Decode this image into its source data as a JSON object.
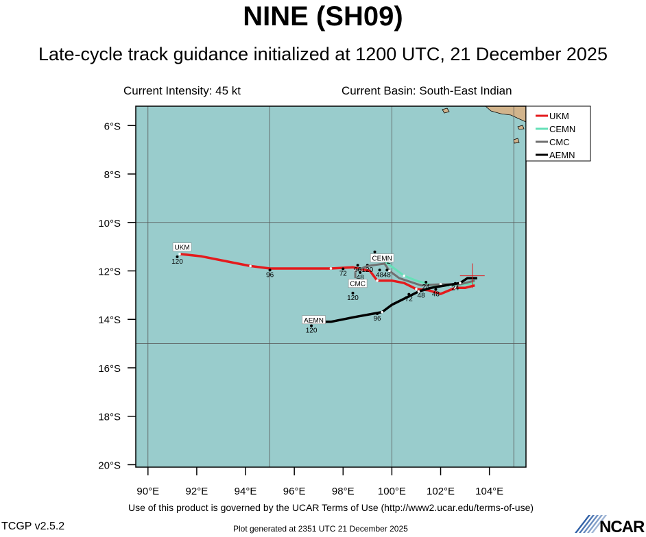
{
  "header": {
    "title": "NINE (SH09)",
    "subtitle": "Late-cycle track guidance initialized at 1200 UTC, 21 December 2025",
    "current_intensity": "Current Intensity: 45 kt",
    "current_basin": "Current Basin: South-East Indian"
  },
  "footer": {
    "terms": "Use of this product is governed by the UCAR Terms of Use (http://www2.ucar.edu/terms-of-use)",
    "version": "TCGP v2.5.2",
    "generated": "Plot generated at 2351 UTC   21 December 2025",
    "logo_text": "NCAR"
  },
  "map": {
    "lon_range": [
      89.5,
      105.5
    ],
    "lat_range": [
      -20.1,
      -5.2
    ],
    "lon_ticks": [
      {
        "value": 90,
        "label": "90°E"
      },
      {
        "value": 92,
        "label": "92°E"
      },
      {
        "value": 94,
        "label": "94°E"
      },
      {
        "value": 96,
        "label": "96°E"
      },
      {
        "value": 98,
        "label": "98°E"
      },
      {
        "value": 100,
        "label": "100°E"
      },
      {
        "value": 102,
        "label": "102°E"
      },
      {
        "value": 104,
        "label": "104°E"
      }
    ],
    "lat_ticks": [
      {
        "value": -6,
        "label": "6°S"
      },
      {
        "value": -8,
        "label": "8°S"
      },
      {
        "value": -10,
        "label": "10°S"
      },
      {
        "value": -12,
        "label": "12°S"
      },
      {
        "value": -14,
        "label": "14°S"
      },
      {
        "value": -16,
        "label": "16°S"
      },
      {
        "value": -18,
        "label": "18°S"
      },
      {
        "value": -20,
        "label": "20°S"
      }
    ],
    "grid_lons": [
      90,
      95,
      100,
      105
    ],
    "grid_lats": [
      -10,
      -15
    ],
    "ocean_color": "#99cccc",
    "land_color": "#d2b48c",
    "current_position": {
      "lon": 103.3,
      "lat": -12.2
    }
  },
  "legend": [
    {
      "name": "UKM",
      "color": "#e41a1c"
    },
    {
      "name": "CEMN",
      "color": "#66e0b8"
    },
    {
      "name": "CMC",
      "color": "#707070"
    },
    {
      "name": "AEMN",
      "color": "#000000"
    }
  ],
  "tracks": [
    {
      "name": "UKM",
      "color": "#e41a1c",
      "width": 3.5,
      "points": [
        [
          103.4,
          -12.6
        ],
        [
          103.0,
          -12.7
        ],
        [
          102.6,
          -12.7
        ],
        [
          102.0,
          -12.95
        ],
        [
          101.5,
          -12.8
        ],
        [
          101.0,
          -12.75
        ],
        [
          100.5,
          -12.5
        ],
        [
          100.0,
          -12.4
        ],
        [
          99.4,
          -12.4
        ],
        [
          99.1,
          -12.0
        ],
        [
          98.4,
          -11.85
        ],
        [
          97.5,
          -11.9
        ],
        [
          96.5,
          -11.9
        ],
        [
          95.0,
          -11.9
        ],
        [
          94.2,
          -11.8
        ],
        [
          93.2,
          -11.6
        ],
        [
          92.2,
          -11.4
        ],
        [
          91.3,
          -11.3
        ]
      ],
      "labels": [
        {
          "lon": 95,
          "lat": -12.05,
          "text": "96"
        },
        {
          "lon": 91.2,
          "lat": -11.5,
          "text": "120"
        }
      ],
      "box_label": {
        "lon": 91.4,
        "lat": -11.1,
        "text": "UKM"
      }
    },
    {
      "name": "CEMN",
      "color": "#66e0b8",
      "width": 3,
      "points": [
        [
          103.4,
          -12.5
        ],
        [
          103.0,
          -12.55
        ],
        [
          102.4,
          -12.6
        ],
        [
          101.7,
          -12.6
        ],
        [
          101.0,
          -12.4
        ],
        [
          100.5,
          -12.2
        ],
        [
          100.1,
          -11.9
        ],
        [
          99.7,
          -11.6
        ],
        [
          99.3,
          -11.5
        ]
      ],
      "labels": [
        {
          "lon": 99.8,
          "lat": -11.5,
          "text": "72"
        },
        {
          "lon": 99.5,
          "lat": -12.05,
          "text": "48"
        },
        {
          "lon": 99.3,
          "lat": -11.3,
          "text": "96"
        },
        {
          "lon": 99.0,
          "lat": -11.85,
          "text": "120"
        }
      ],
      "box_label": {
        "lon": 99.6,
        "lat": -11.55,
        "text": "CEMN"
      }
    },
    {
      "name": "CMC",
      "color": "#707070",
      "width": 3,
      "points": [
        [
          103.4,
          -12.4
        ],
        [
          102.8,
          -12.55
        ],
        [
          102.0,
          -12.55
        ],
        [
          101.2,
          -12.6
        ],
        [
          100.3,
          -12.3
        ],
        [
          99.9,
          -12.0
        ],
        [
          99.7,
          -11.7
        ],
        [
          99.0,
          -11.8
        ],
        [
          98.5,
          -12.0
        ],
        [
          98.5,
          -12.3
        ]
      ],
      "labels": [
        {
          "lon": 99.8,
          "lat": -12.05,
          "text": "48"
        },
        {
          "lon": 98.7,
          "lat": -12.15,
          "text": "48"
        },
        {
          "lon": 98.0,
          "lat": -12.0,
          "text": "72"
        },
        {
          "lon": 98.6,
          "lat": -11.85,
          "text": "96"
        },
        {
          "lon": 98.4,
          "lat": -13.0,
          "text": "120"
        }
      ],
      "box_label": {
        "lon": 98.6,
        "lat": -12.6,
        "text": "CMC"
      }
    },
    {
      "name": "AEMN",
      "color": "#000000",
      "width": 3.5,
      "points": [
        [
          103.5,
          -12.3
        ],
        [
          103.1,
          -12.3
        ],
        [
          102.8,
          -12.5
        ],
        [
          102.2,
          -12.6
        ],
        [
          101.6,
          -12.7
        ],
        [
          101.1,
          -12.85
        ],
        [
          100.6,
          -13.1
        ],
        [
          100.0,
          -13.4
        ],
        [
          99.6,
          -13.7
        ],
        [
          98.5,
          -13.9
        ],
        [
          97.5,
          -14.1
        ],
        [
          97.0,
          -14.1
        ]
      ],
      "labels": [
        {
          "lon": 101.4,
          "lat": -12.55,
          "text": "24"
        },
        {
          "lon": 101.2,
          "lat": -12.9,
          "text": "48"
        },
        {
          "lon": 100.7,
          "lat": -13.05,
          "text": "72"
        },
        {
          "lon": 101.8,
          "lat": -12.85,
          "text": "48"
        },
        {
          "lon": 102.6,
          "lat": -12.6,
          "text": "24"
        },
        {
          "lon": 99.4,
          "lat": -13.85,
          "text": "96"
        },
        {
          "lon": 96.7,
          "lat": -14.35,
          "text": "120"
        }
      ],
      "box_label": {
        "lon": 96.8,
        "lat": -14.1,
        "text": "AEMN"
      }
    }
  ]
}
